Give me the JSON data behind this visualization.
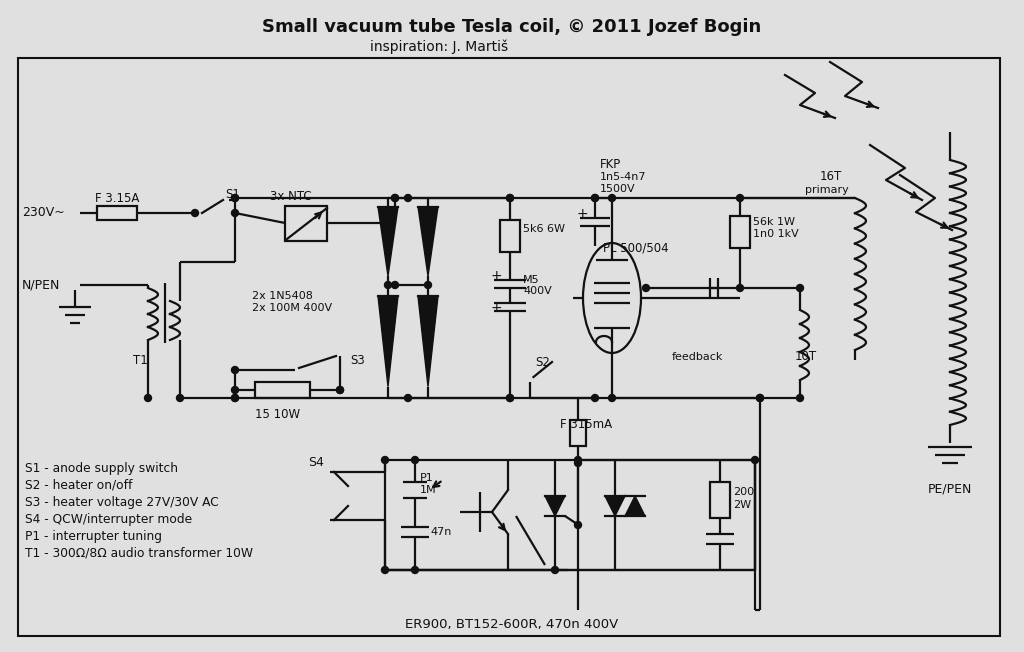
{
  "title": "Small vacuum tube Tesla coil, © 2011 Jozef Bogin",
  "subtitle": "inspiration: J. Martiš",
  "bg_color": "#e0e0e0",
  "line_color": "#111111",
  "legend_lines": [
    "S1 - anode supply switch",
    "S2 - heater on/off",
    "S3 - heater voltage 27V/30V AC",
    "S4 - QCW/interrupter mode",
    "P1 - interrupter tuning",
    "T1 - 300Ω/8Ω audio transformer 10W"
  ],
  "bottom_label": "ER900, BT152-600R, 470n 400V",
  "lw": 1.6
}
